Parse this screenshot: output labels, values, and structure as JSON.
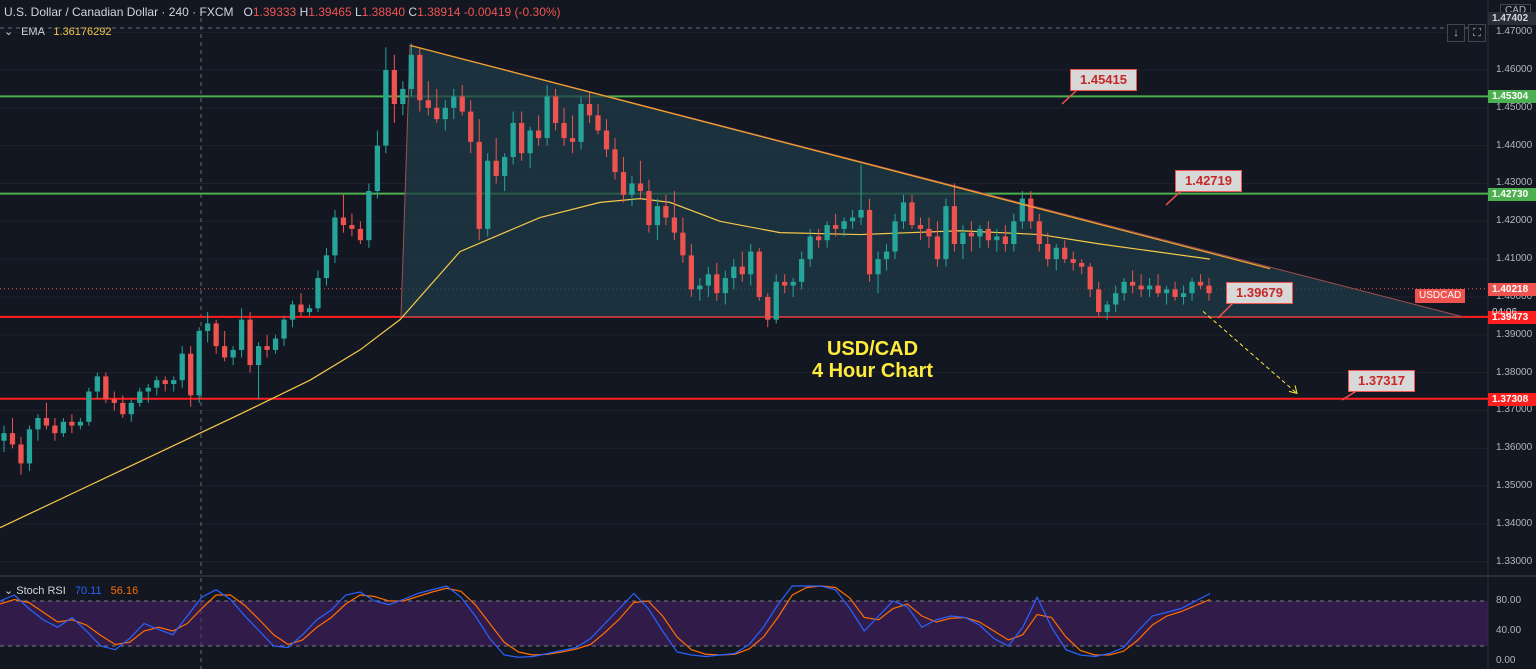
{
  "header": {
    "symbol_name": "U.S. Dollar / Canadian Dollar",
    "interval": "240",
    "exchange": "FXCM",
    "o_label": "O",
    "o": "1.39333",
    "h_label": "H",
    "h": "1.39465",
    "l_label": "L",
    "l": "1.38840",
    "c_label": "C",
    "c": "1.38914",
    "change": "-0.00419 (-0.30%)"
  },
  "ema": {
    "label": "EMA",
    "value": "1.36176292"
  },
  "stoch": {
    "label": "Stoch RSI",
    "k": "70.11",
    "d": "56.16"
  },
  "currency": "CAD",
  "symbol_badge": "USDCAD",
  "countdown": "04:06",
  "toolbar": {
    "down_icon": "arrow-down-icon",
    "screen_icon": "fullscreen-icon"
  },
  "colors": {
    "background": "#131722",
    "bull": "#26a69a",
    "bear": "#ef5350",
    "ema": "#f7c948",
    "green_line": "#4caf50",
    "red_line": "#ff1e1e",
    "triangle_fill": "#1f3b47",
    "trend": "#f0a030",
    "stoch_k": "#2962ff",
    "stoch_d": "#ff6d00",
    "stoch_band": "#4a2069"
  },
  "chart_data": {
    "type": "candlestick",
    "title": "USD/CAD\n4 Hour Chart",
    "y_axis": {
      "ticks": [
        "1.47000",
        "1.46000",
        "1.45000",
        "1.44000",
        "1.43000",
        "1.42000",
        "1.41000",
        "1.40000",
        "1.39000",
        "1.38000",
        "1.37000",
        "1.36000",
        "1.35000",
        "1.34000",
        "1.33000"
      ],
      "range": [
        1.3265,
        1.4785
      ]
    },
    "price_labels": {
      "top": "1.47402",
      "green_high": "1.45304",
      "green_mid": "1.42730",
      "last": "1.40218",
      "red_support": "1.39473",
      "red_low": "1.37308"
    },
    "horizontal_levels": [
      {
        "value": 1.45304,
        "color": "green"
      },
      {
        "value": 1.4273,
        "color": "green"
      },
      {
        "value": 1.39473,
        "color": "red"
      },
      {
        "value": 1.37308,
        "color": "red"
      }
    ],
    "callouts": [
      {
        "text": "1.45415",
        "value": 1.45415
      },
      {
        "text": "1.42719",
        "value": 1.42719
      },
      {
        "text": "1.39679",
        "value": 1.39679
      },
      {
        "text": "1.37317",
        "value": 1.37317
      }
    ],
    "candles": [
      [
        1.362,
        1.366,
        1.359,
        1.364
      ],
      [
        1.364,
        1.368,
        1.36,
        1.361
      ],
      [
        1.361,
        1.363,
        1.353,
        1.356
      ],
      [
        1.356,
        1.366,
        1.354,
        1.365
      ],
      [
        1.365,
        1.369,
        1.362,
        1.368
      ],
      [
        1.368,
        1.372,
        1.365,
        1.366
      ],
      [
        1.366,
        1.368,
        1.362,
        1.364
      ],
      [
        1.364,
        1.368,
        1.363,
        1.367
      ],
      [
        1.367,
        1.369,
        1.364,
        1.366
      ],
      [
        1.366,
        1.368,
        1.365,
        1.367
      ],
      [
        1.367,
        1.376,
        1.366,
        1.375
      ],
      [
        1.375,
        1.38,
        1.373,
        1.379
      ],
      [
        1.379,
        1.38,
        1.372,
        1.373
      ],
      [
        1.373,
        1.375,
        1.37,
        1.372
      ],
      [
        1.372,
        1.374,
        1.368,
        1.369
      ],
      [
        1.369,
        1.373,
        1.367,
        1.372
      ],
      [
        1.372,
        1.376,
        1.371,
        1.375
      ],
      [
        1.375,
        1.377,
        1.372,
        1.376
      ],
      [
        1.376,
        1.379,
        1.374,
        1.378
      ],
      [
        1.378,
        1.379,
        1.375,
        1.377
      ],
      [
        1.377,
        1.379,
        1.375,
        1.378
      ],
      [
        1.378,
        1.387,
        1.376,
        1.385
      ],
      [
        1.385,
        1.387,
        1.371,
        1.374
      ],
      [
        1.374,
        1.392,
        1.372,
        1.391
      ],
      [
        1.391,
        1.396,
        1.388,
        1.393
      ],
      [
        1.393,
        1.394,
        1.385,
        1.387
      ],
      [
        1.387,
        1.391,
        1.383,
        1.384
      ],
      [
        1.384,
        1.387,
        1.382,
        1.386
      ],
      [
        1.386,
        1.397,
        1.384,
        1.394
      ],
      [
        1.394,
        1.396,
        1.38,
        1.382
      ],
      [
        1.382,
        1.388,
        1.373,
        1.387
      ],
      [
        1.387,
        1.39,
        1.384,
        1.386
      ],
      [
        1.386,
        1.39,
        1.385,
        1.389
      ],
      [
        1.389,
        1.395,
        1.387,
        1.394
      ],
      [
        1.394,
        1.399,
        1.392,
        1.398
      ],
      [
        1.398,
        1.401,
        1.395,
        1.396
      ],
      [
        1.396,
        1.398,
        1.395,
        1.397
      ],
      [
        1.397,
        1.407,
        1.396,
        1.405
      ],
      [
        1.405,
        1.413,
        1.403,
        1.411
      ],
      [
        1.411,
        1.423,
        1.409,
        1.421
      ],
      [
        1.421,
        1.427,
        1.417,
        1.419
      ],
      [
        1.419,
        1.422,
        1.416,
        1.418
      ],
      [
        1.418,
        1.42,
        1.414,
        1.415
      ],
      [
        1.415,
        1.43,
        1.413,
        1.428
      ],
      [
        1.428,
        1.444,
        1.426,
        1.44
      ],
      [
        1.44,
        1.466,
        1.438,
        1.46
      ],
      [
        1.46,
        1.464,
        1.446,
        1.451
      ],
      [
        1.451,
        1.457,
        1.448,
        1.455
      ],
      [
        1.455,
        1.467,
        1.453,
        1.464
      ],
      [
        1.464,
        1.466,
        1.449,
        1.452
      ],
      [
        1.452,
        1.457,
        1.448,
        1.45
      ],
      [
        1.45,
        1.455,
        1.446,
        1.447
      ],
      [
        1.447,
        1.452,
        1.444,
        1.45
      ],
      [
        1.45,
        1.455,
        1.447,
        1.453
      ],
      [
        1.453,
        1.456,
        1.448,
        1.449
      ],
      [
        1.449,
        1.452,
        1.438,
        1.441
      ],
      [
        1.441,
        1.447,
        1.415,
        1.418
      ],
      [
        1.418,
        1.438,
        1.416,
        1.436
      ],
      [
        1.436,
        1.442,
        1.43,
        1.432
      ],
      [
        1.432,
        1.438,
        1.428,
        1.437
      ],
      [
        1.437,
        1.449,
        1.435,
        1.446
      ],
      [
        1.446,
        1.449,
        1.436,
        1.438
      ],
      [
        1.438,
        1.445,
        1.434,
        1.444
      ],
      [
        1.444,
        1.448,
        1.44,
        1.442
      ],
      [
        1.442,
        1.456,
        1.44,
        1.453
      ],
      [
        1.453,
        1.455,
        1.444,
        1.446
      ],
      [
        1.446,
        1.45,
        1.44,
        1.442
      ],
      [
        1.442,
        1.448,
        1.438,
        1.441
      ],
      [
        1.441,
        1.453,
        1.439,
        1.451
      ],
      [
        1.451,
        1.454,
        1.446,
        1.448
      ],
      [
        1.448,
        1.451,
        1.443,
        1.444
      ],
      [
        1.444,
        1.447,
        1.437,
        1.439
      ],
      [
        1.439,
        1.442,
        1.431,
        1.433
      ],
      [
        1.433,
        1.437,
        1.425,
        1.427
      ],
      [
        1.427,
        1.432,
        1.424,
        1.43
      ],
      [
        1.43,
        1.436,
        1.426,
        1.428
      ],
      [
        1.428,
        1.431,
        1.417,
        1.419
      ],
      [
        1.419,
        1.426,
        1.415,
        1.424
      ],
      [
        1.424,
        1.427,
        1.419,
        1.421
      ],
      [
        1.421,
        1.428,
        1.415,
        1.417
      ],
      [
        1.417,
        1.421,
        1.409,
        1.411
      ],
      [
        1.411,
        1.414,
        1.4,
        1.402
      ],
      [
        1.402,
        1.405,
        1.399,
        1.403
      ],
      [
        1.403,
        1.408,
        1.4,
        1.406
      ],
      [
        1.406,
        1.409,
        1.399,
        1.401
      ],
      [
        1.401,
        1.407,
        1.398,
        1.405
      ],
      [
        1.405,
        1.41,
        1.402,
        1.408
      ],
      [
        1.408,
        1.412,
        1.404,
        1.406
      ],
      [
        1.406,
        1.414,
        1.403,
        1.412
      ],
      [
        1.412,
        1.413,
        1.399,
        1.4
      ],
      [
        1.4,
        1.401,
        1.392,
        1.394
      ],
      [
        1.394,
        1.406,
        1.393,
        1.404
      ],
      [
        1.404,
        1.406,
        1.401,
        1.403
      ],
      [
        1.403,
        1.405,
        1.4,
        1.404
      ],
      [
        1.404,
        1.412,
        1.402,
        1.41
      ],
      [
        1.41,
        1.418,
        1.408,
        1.416
      ],
      [
        1.416,
        1.418,
        1.413,
        1.415
      ],
      [
        1.415,
        1.42,
        1.413,
        1.419
      ],
      [
        1.419,
        1.422,
        1.416,
        1.418
      ],
      [
        1.418,
        1.421,
        1.416,
        1.42
      ],
      [
        1.42,
        1.423,
        1.418,
        1.421
      ],
      [
        1.421,
        1.435,
        1.419,
        1.423
      ],
      [
        1.423,
        1.426,
        1.404,
        1.406
      ],
      [
        1.406,
        1.412,
        1.401,
        1.41
      ],
      [
        1.41,
        1.414,
        1.407,
        1.412
      ],
      [
        1.412,
        1.422,
        1.41,
        1.42
      ],
      [
        1.42,
        1.427,
        1.418,
        1.425
      ],
      [
        1.425,
        1.427,
        1.418,
        1.419
      ],
      [
        1.419,
        1.421,
        1.415,
        1.418
      ],
      [
        1.418,
        1.421,
        1.413,
        1.416
      ],
      [
        1.416,
        1.42,
        1.408,
        1.41
      ],
      [
        1.41,
        1.426,
        1.408,
        1.424
      ],
      [
        1.424,
        1.43,
        1.412,
        1.414
      ],
      [
        1.414,
        1.419,
        1.41,
        1.417
      ],
      [
        1.417,
        1.42,
        1.412,
        1.416
      ],
      [
        1.416,
        1.419,
        1.413,
        1.418
      ],
      [
        1.418,
        1.42,
        1.413,
        1.415
      ],
      [
        1.415,
        1.418,
        1.412,
        1.416
      ],
      [
        1.416,
        1.419,
        1.412,
        1.414
      ],
      [
        1.414,
        1.422,
        1.412,
        1.42
      ],
      [
        1.42,
        1.428,
        1.418,
        1.426
      ],
      [
        1.426,
        1.428,
        1.418,
        1.42
      ],
      [
        1.42,
        1.422,
        1.412,
        1.414
      ],
      [
        1.414,
        1.417,
        1.408,
        1.41
      ],
      [
        1.41,
        1.414,
        1.407,
        1.413
      ],
      [
        1.413,
        1.415,
        1.409,
        1.41
      ],
      [
        1.41,
        1.412,
        1.407,
        1.409
      ],
      [
        1.409,
        1.41,
        1.406,
        1.408
      ],
      [
        1.408,
        1.409,
        1.4,
        1.402
      ],
      [
        1.402,
        1.404,
        1.395,
        1.396
      ],
      [
        1.396,
        1.399,
        1.394,
        1.398
      ],
      [
        1.398,
        1.403,
        1.396,
        1.401
      ],
      [
        1.401,
        1.405,
        1.399,
        1.404
      ],
      [
        1.404,
        1.407,
        1.401,
        1.403
      ],
      [
        1.403,
        1.406,
        1.4,
        1.402
      ],
      [
        1.402,
        1.405,
        1.4,
        1.403
      ],
      [
        1.403,
        1.406,
        1.4,
        1.401
      ],
      [
        1.401,
        1.403,
        1.398,
        1.402
      ],
      [
        1.402,
        1.404,
        1.399,
        1.4
      ],
      [
        1.4,
        1.403,
        1.398,
        1.401
      ],
      [
        1.401,
        1.405,
        1.399,
        1.404
      ],
      [
        1.404,
        1.406,
        1.402,
        1.403
      ],
      [
        1.403,
        1.405,
        1.399,
        1.401
      ]
    ],
    "ema": [
      1.339,
      1.349,
      1.359,
      1.369,
      1.378,
      1.386,
      1.394,
      1.412,
      1.421,
      1.425,
      1.426,
      1.425,
      1.42,
      1.417,
      1.4165,
      1.4175,
      1.4165,
      1.414,
      1.41
    ],
    "ema_x": [
      0,
      80,
      160,
      240,
      310,
      360,
      400,
      460,
      540,
      600,
      640,
      670,
      720,
      780,
      860,
      960,
      1040,
      1100,
      1210
    ],
    "triangle": {
      "apex_top": [
        410,
        1.4665
      ],
      "apex_right": [
        1462,
        1.3948
      ],
      "base_left": [
        401,
        1.3948
      ]
    },
    "trend_line": [
      [
        410,
        1.4665
      ],
      [
        1270,
        1.4075
      ]
    ],
    "projection_arrow": [
      [
        1203,
        1.3962
      ],
      [
        1297,
        1.3745
      ]
    ],
    "stoch_rsi": {
      "ticks": [
        "80.00",
        "40.00",
        "0.00"
      ],
      "upper_band": 80,
      "lower_band": 20,
      "k": [
        80,
        88,
        70,
        55,
        45,
        58,
        40,
        20,
        15,
        30,
        50,
        42,
        35,
        60,
        85,
        95,
        82,
        60,
        40,
        20,
        18,
        35,
        55,
        68,
        88,
        92,
        80,
        75,
        82,
        90,
        95,
        100,
        85,
        60,
        30,
        8,
        5,
        6,
        10,
        14,
        18,
        30,
        50,
        70,
        90,
        70,
        40,
        12,
        8,
        6,
        8,
        10,
        22,
        45,
        75,
        100,
        100,
        100,
        95,
        70,
        40,
        60,
        80,
        72,
        45,
        55,
        60,
        58,
        48,
        30,
        20,
        45,
        85,
        45,
        15,
        8,
        6,
        10,
        18,
        40,
        60,
        65,
        70,
        80,
        90
      ],
      "d": [
        76,
        82,
        78,
        65,
        52,
        55,
        48,
        34,
        22,
        25,
        40,
        45,
        40,
        50,
        70,
        88,
        88,
        74,
        55,
        35,
        22,
        28,
        45,
        58,
        76,
        88,
        86,
        80,
        80,
        86,
        92,
        97,
        93,
        75,
        50,
        25,
        12,
        8,
        9,
        12,
        16,
        22,
        38,
        56,
        78,
        80,
        60,
        32,
        15,
        9,
        8,
        9,
        16,
        32,
        58,
        88,
        98,
        100,
        98,
        84,
        58,
        55,
        70,
        76,
        60,
        52,
        57,
        58,
        52,
        40,
        28,
        35,
        62,
        58,
        32,
        14,
        8,
        8,
        13,
        28,
        48,
        60,
        66,
        74,
        82
      ]
    }
  }
}
